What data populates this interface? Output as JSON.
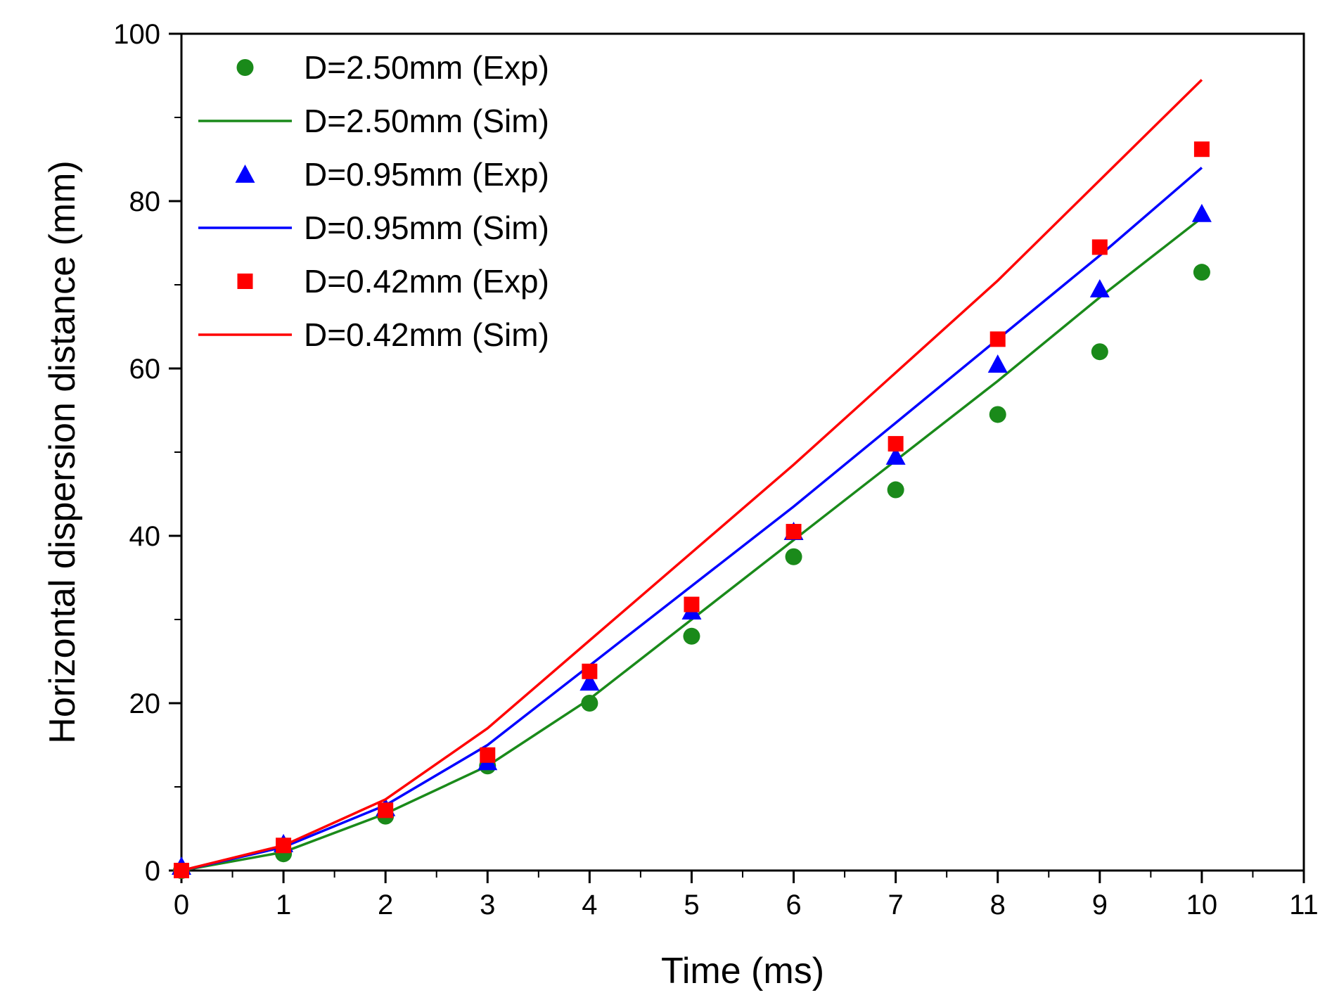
{
  "chart_data": {
    "type": "line",
    "xlabel": "Time (ms)",
    "ylabel": "Horizontal dispersion distance (mm)",
    "xlim": [
      0,
      11
    ],
    "ylim": [
      0,
      100
    ],
    "x_ticks": [
      0,
      1,
      2,
      3,
      4,
      5,
      6,
      7,
      8,
      9,
      10,
      11
    ],
    "y_ticks": [
      0,
      20,
      40,
      60,
      80,
      100
    ],
    "grid": false,
    "legend_position": "top-left",
    "series": [
      {
        "name": "D=2.50mm (Exp)",
        "kind": "scatter",
        "marker": "circle",
        "color": "#1a8a1a",
        "x": [
          0,
          1,
          2,
          3,
          4,
          5,
          6,
          7,
          8,
          9,
          10
        ],
        "y": [
          0,
          2,
          6.5,
          12.5,
          20,
          28,
          37.5,
          45.5,
          54.5,
          62,
          71.5
        ]
      },
      {
        "name": "D=2.50mm (Sim)",
        "kind": "line",
        "color": "#1a8a1a",
        "x": [
          0,
          1,
          2,
          3,
          4,
          5,
          6,
          7,
          8,
          9,
          10
        ],
        "y": [
          0,
          2.2,
          6.8,
          12.5,
          20.5,
          30,
          39.5,
          49,
          58.5,
          68.5,
          78
        ]
      },
      {
        "name": "D=0.95mm (Exp)",
        "kind": "scatter",
        "marker": "triangle",
        "color": "#0000ff",
        "x": [
          0,
          1,
          2,
          3,
          4,
          5,
          6,
          7,
          8,
          9,
          10
        ],
        "y": [
          0.5,
          3.2,
          7.5,
          13,
          22.5,
          31,
          40.5,
          49.5,
          60.5,
          69.5,
          78.5
        ]
      },
      {
        "name": "D=0.95mm (Sim)",
        "kind": "line",
        "color": "#0000ff",
        "x": [
          0,
          1,
          2,
          3,
          4,
          5,
          6,
          7,
          8,
          9,
          10
        ],
        "y": [
          0,
          2.8,
          7.8,
          15,
          24.5,
          34,
          43.5,
          53.5,
          63.5,
          73.5,
          84
        ]
      },
      {
        "name": "D=0.42mm (Exp)",
        "kind": "scatter",
        "marker": "square",
        "color": "#ff0000",
        "x": [
          0,
          1,
          2,
          3,
          4,
          5,
          6,
          7,
          8,
          9,
          10
        ],
        "y": [
          0,
          3,
          7.2,
          13.8,
          23.8,
          31.8,
          40.5,
          51,
          63.5,
          74.5,
          86.2
        ]
      },
      {
        "name": "D=0.42mm (Sim)",
        "kind": "line",
        "color": "#ff0000",
        "x": [
          0,
          1,
          2,
          3,
          4,
          5,
          6,
          7,
          8,
          9,
          10
        ],
        "y": [
          0,
          3,
          8.5,
          17,
          27.5,
          38,
          48.5,
          59.5,
          70.5,
          82.5,
          94.5
        ]
      }
    ]
  }
}
